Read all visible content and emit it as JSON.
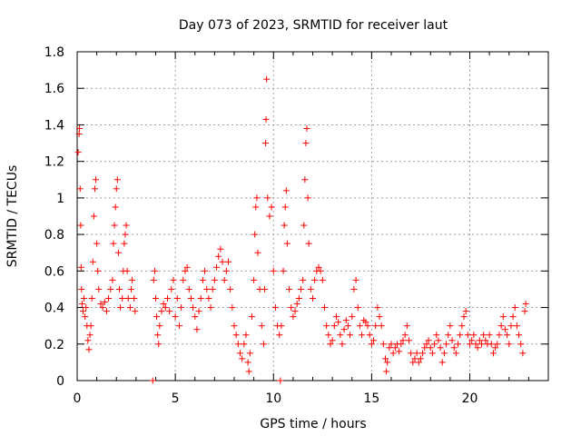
{
  "chart_data": {
    "type": "scatter",
    "title": "Day 073 of 2023, SRMTID for receiver laut",
    "xlabel": "GPS time / hours",
    "ylabel": "SRMTID / TECUs",
    "xlim": [
      0,
      24
    ],
    "ylim": [
      0,
      1.8
    ],
    "x_ticks": [
      0,
      5,
      10,
      15,
      20
    ],
    "y_ticks": [
      0,
      0.2,
      0.4,
      0.6,
      0.8,
      1,
      1.2,
      1.4,
      1.6,
      1.8
    ],
    "x_tick_labels": [
      "0",
      "5",
      "10",
      "15",
      "20"
    ],
    "y_tick_labels": [
      "0",
      "0.2",
      "0.4",
      "0.6",
      "0.8",
      "1",
      "1.2",
      "1.4",
      "1.6",
      "1.8"
    ],
    "grid": true,
    "marker": "+",
    "marker_color": "#ff0000",
    "series": [
      {
        "name": "laut",
        "points": [
          [
            0.05,
            1.25
          ],
          [
            0.1,
            1.35
          ],
          [
            0.12,
            1.38
          ],
          [
            0.15,
            1.05
          ],
          [
            0.18,
            0.85
          ],
          [
            0.2,
            0.62
          ],
          [
            0.22,
            0.5
          ],
          [
            0.25,
            0.42
          ],
          [
            0.3,
            0.38
          ],
          [
            0.35,
            0.45
          ],
          [
            0.4,
            0.35
          ],
          [
            0.45,
            0.4
          ],
          [
            0.5,
            0.3
          ],
          [
            0.55,
            0.22
          ],
          [
            0.6,
            0.17
          ],
          [
            0.65,
            0.25
          ],
          [
            0.7,
            0.3
          ],
          [
            0.75,
            0.45
          ],
          [
            0.8,
            0.65
          ],
          [
            0.85,
            0.9
          ],
          [
            0.9,
            1.05
          ],
          [
            0.95,
            1.1
          ],
          [
            1.0,
            0.75
          ],
          [
            1.05,
            0.6
          ],
          [
            1.1,
            0.5
          ],
          [
            1.2,
            0.42
          ],
          [
            1.3,
            0.4
          ],
          [
            1.4,
            0.43
          ],
          [
            1.5,
            0.38
          ],
          [
            1.6,
            0.45
          ],
          [
            1.7,
            0.5
          ],
          [
            1.8,
            0.55
          ],
          [
            1.85,
            0.75
          ],
          [
            1.9,
            0.85
          ],
          [
            1.95,
            0.95
          ],
          [
            2.0,
            1.05
          ],
          [
            2.05,
            1.1
          ],
          [
            2.1,
            0.7
          ],
          [
            2.15,
            0.5
          ],
          [
            2.2,
            0.4
          ],
          [
            2.3,
            0.45
          ],
          [
            2.35,
            0.6
          ],
          [
            2.4,
            0.75
          ],
          [
            2.45,
            0.8
          ],
          [
            2.5,
            0.85
          ],
          [
            2.55,
            0.6
          ],
          [
            2.6,
            0.45
          ],
          [
            2.7,
            0.4
          ],
          [
            2.75,
            0.5
          ],
          [
            2.8,
            0.55
          ],
          [
            2.9,
            0.45
          ],
          [
            2.95,
            0.38
          ],
          [
            3.85,
            0.0
          ],
          [
            3.9,
            0.55
          ],
          [
            3.95,
            0.6
          ],
          [
            4.0,
            0.45
          ],
          [
            4.05,
            0.35
          ],
          [
            4.1,
            0.25
          ],
          [
            4.15,
            0.2
          ],
          [
            4.2,
            0.3
          ],
          [
            4.3,
            0.38
          ],
          [
            4.4,
            0.42
          ],
          [
            4.5,
            0.4
          ],
          [
            4.6,
            0.45
          ],
          [
            4.7,
            0.38
          ],
          [
            4.8,
            0.5
          ],
          [
            4.9,
            0.55
          ],
          [
            5.0,
            0.35
          ],
          [
            5.1,
            0.45
          ],
          [
            5.2,
            0.3
          ],
          [
            5.3,
            0.4
          ],
          [
            5.4,
            0.55
          ],
          [
            5.5,
            0.6
          ],
          [
            5.6,
            0.62
          ],
          [
            5.7,
            0.5
          ],
          [
            5.8,
            0.45
          ],
          [
            5.9,
            0.4
          ],
          [
            6.0,
            0.35
          ],
          [
            6.1,
            0.28
          ],
          [
            6.2,
            0.38
          ],
          [
            6.3,
            0.45
          ],
          [
            6.4,
            0.55
          ],
          [
            6.5,
            0.6
          ],
          [
            6.6,
            0.5
          ],
          [
            6.7,
            0.45
          ],
          [
            6.8,
            0.4
          ],
          [
            6.9,
            0.5
          ],
          [
            7.0,
            0.55
          ],
          [
            7.1,
            0.62
          ],
          [
            7.2,
            0.68
          ],
          [
            7.3,
            0.72
          ],
          [
            7.4,
            0.65
          ],
          [
            7.5,
            0.55
          ],
          [
            7.6,
            0.6
          ],
          [
            7.7,
            0.65
          ],
          [
            7.8,
            0.5
          ],
          [
            7.9,
            0.4
          ],
          [
            8.0,
            0.3
          ],
          [
            8.1,
            0.25
          ],
          [
            8.2,
            0.2
          ],
          [
            8.3,
            0.15
          ],
          [
            8.4,
            0.12
          ],
          [
            8.5,
            0.2
          ],
          [
            8.6,
            0.25
          ],
          [
            8.7,
            0.1
          ],
          [
            8.75,
            0.05
          ],
          [
            8.8,
            0.15
          ],
          [
            8.9,
            0.35
          ],
          [
            9.0,
            0.55
          ],
          [
            9.05,
            0.8
          ],
          [
            9.1,
            0.95
          ],
          [
            9.15,
            1.0
          ],
          [
            9.2,
            0.7
          ],
          [
            9.3,
            0.5
          ],
          [
            9.4,
            0.3
          ],
          [
            9.5,
            0.2
          ],
          [
            9.55,
            0.5
          ],
          [
            9.6,
            1.3
          ],
          [
            9.62,
            1.43
          ],
          [
            9.65,
            1.65
          ],
          [
            9.7,
            1.0
          ],
          [
            9.8,
            0.9
          ],
          [
            9.9,
            0.95
          ],
          [
            10.0,
            0.6
          ],
          [
            10.1,
            0.4
          ],
          [
            10.2,
            0.3
          ],
          [
            10.3,
            0.25
          ],
          [
            10.35,
            0.0
          ],
          [
            10.4,
            0.3
          ],
          [
            10.5,
            0.6
          ],
          [
            10.55,
            0.85
          ],
          [
            10.6,
            0.95
          ],
          [
            10.65,
            1.04
          ],
          [
            10.7,
            0.75
          ],
          [
            10.8,
            0.5
          ],
          [
            10.9,
            0.4
          ],
          [
            11.0,
            0.35
          ],
          [
            11.1,
            0.38
          ],
          [
            11.2,
            0.42
          ],
          [
            11.3,
            0.45
          ],
          [
            11.4,
            0.5
          ],
          [
            11.5,
            0.55
          ],
          [
            11.55,
            0.85
          ],
          [
            11.6,
            1.1
          ],
          [
            11.65,
            1.3
          ],
          [
            11.7,
            1.38
          ],
          [
            11.75,
            1.0
          ],
          [
            11.8,
            0.75
          ],
          [
            11.9,
            0.5
          ],
          [
            12.0,
            0.45
          ],
          [
            12.1,
            0.55
          ],
          [
            12.2,
            0.6
          ],
          [
            12.3,
            0.62
          ],
          [
            12.4,
            0.6
          ],
          [
            12.5,
            0.55
          ],
          [
            12.6,
            0.4
          ],
          [
            12.7,
            0.3
          ],
          [
            12.8,
            0.25
          ],
          [
            12.9,
            0.2
          ],
          [
            13.0,
            0.22
          ],
          [
            13.1,
            0.3
          ],
          [
            13.2,
            0.35
          ],
          [
            13.3,
            0.32
          ],
          [
            13.4,
            0.25
          ],
          [
            13.5,
            0.2
          ],
          [
            13.6,
            0.28
          ],
          [
            13.7,
            0.33
          ],
          [
            13.8,
            0.3
          ],
          [
            13.9,
            0.25
          ],
          [
            14.0,
            0.35
          ],
          [
            14.1,
            0.5
          ],
          [
            14.2,
            0.55
          ],
          [
            14.3,
            0.4
          ],
          [
            14.4,
            0.3
          ],
          [
            14.5,
            0.25
          ],
          [
            14.6,
            0.33
          ],
          [
            14.7,
            0.32
          ],
          [
            14.8,
            0.3
          ],
          [
            14.9,
            0.25
          ],
          [
            15.0,
            0.2
          ],
          [
            15.1,
            0.22
          ],
          [
            15.2,
            0.3
          ],
          [
            15.3,
            0.4
          ],
          [
            15.4,
            0.35
          ],
          [
            15.5,
            0.3
          ],
          [
            15.6,
            0.2
          ],
          [
            15.7,
            0.12
          ],
          [
            15.75,
            0.05
          ],
          [
            15.8,
            0.1
          ],
          [
            15.9,
            0.18
          ],
          [
            16.0,
            0.2
          ],
          [
            16.1,
            0.15
          ],
          [
            16.2,
            0.18
          ],
          [
            16.3,
            0.2
          ],
          [
            16.4,
            0.16
          ],
          [
            16.5,
            0.2
          ],
          [
            16.6,
            0.22
          ],
          [
            16.7,
            0.25
          ],
          [
            16.8,
            0.3
          ],
          [
            16.9,
            0.22
          ],
          [
            17.0,
            0.15
          ],
          [
            17.1,
            0.1
          ],
          [
            17.2,
            0.12
          ],
          [
            17.3,
            0.15
          ],
          [
            17.4,
            0.1
          ],
          [
            17.5,
            0.12
          ],
          [
            17.6,
            0.15
          ],
          [
            17.7,
            0.18
          ],
          [
            17.8,
            0.2
          ],
          [
            17.9,
            0.22
          ],
          [
            18.0,
            0.18
          ],
          [
            18.1,
            0.15
          ],
          [
            18.2,
            0.2
          ],
          [
            18.3,
            0.25
          ],
          [
            18.4,
            0.22
          ],
          [
            18.5,
            0.18
          ],
          [
            18.6,
            0.1
          ],
          [
            18.7,
            0.15
          ],
          [
            18.8,
            0.2
          ],
          [
            18.9,
            0.25
          ],
          [
            19.0,
            0.3
          ],
          [
            19.1,
            0.22
          ],
          [
            19.2,
            0.18
          ],
          [
            19.3,
            0.15
          ],
          [
            19.4,
            0.2
          ],
          [
            19.5,
            0.25
          ],
          [
            19.6,
            0.3
          ],
          [
            19.7,
            0.35
          ],
          [
            19.8,
            0.38
          ],
          [
            19.9,
            0.25
          ],
          [
            20.0,
            0.2
          ],
          [
            20.1,
            0.22
          ],
          [
            20.2,
            0.25
          ],
          [
            20.3,
            0.2
          ],
          [
            20.4,
            0.18
          ],
          [
            20.5,
            0.22
          ],
          [
            20.6,
            0.2
          ],
          [
            20.7,
            0.25
          ],
          [
            20.8,
            0.22
          ],
          [
            20.9,
            0.2
          ],
          [
            21.0,
            0.25
          ],
          [
            21.1,
            0.2
          ],
          [
            21.2,
            0.15
          ],
          [
            21.3,
            0.18
          ],
          [
            21.4,
            0.2
          ],
          [
            21.5,
            0.25
          ],
          [
            21.6,
            0.3
          ],
          [
            21.7,
            0.35
          ],
          [
            21.8,
            0.28
          ],
          [
            21.9,
            0.25
          ],
          [
            22.0,
            0.2
          ],
          [
            22.1,
            0.3
          ],
          [
            22.2,
            0.35
          ],
          [
            22.3,
            0.4
          ],
          [
            22.4,
            0.3
          ],
          [
            22.5,
            0.25
          ],
          [
            22.6,
            0.2
          ],
          [
            22.7,
            0.15
          ],
          [
            22.8,
            0.38
          ],
          [
            22.85,
            0.42
          ]
        ]
      }
    ]
  }
}
